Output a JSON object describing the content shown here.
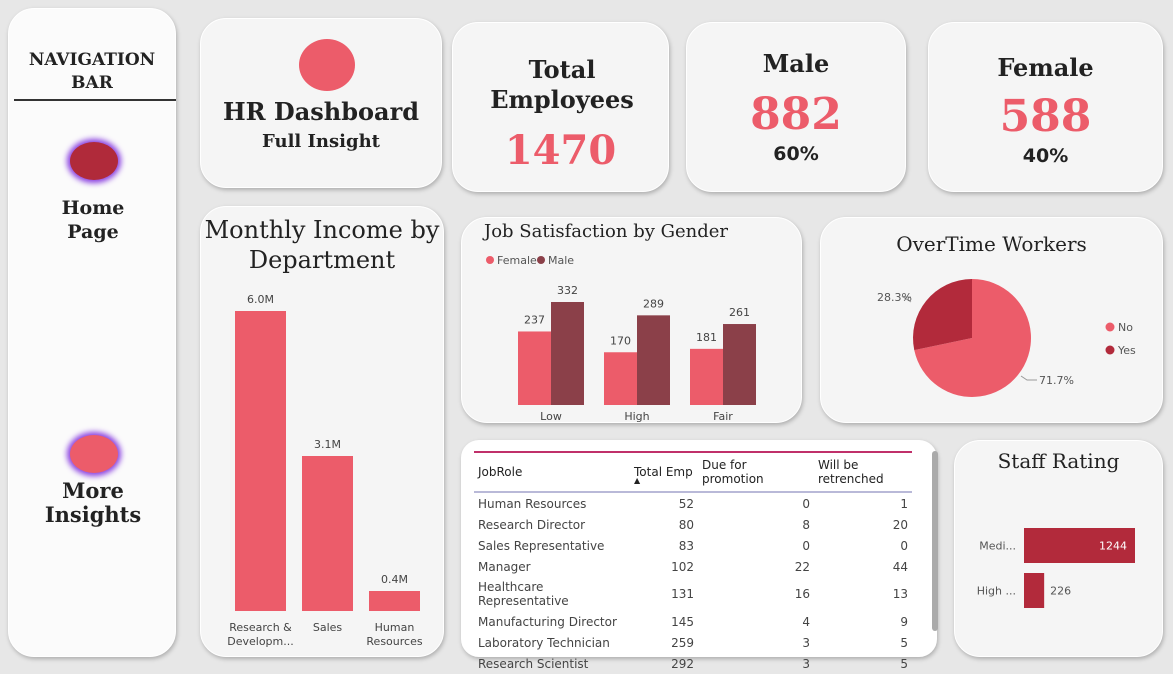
{
  "nav": {
    "title": "NAVIGATION BAR",
    "home_label": "Home Page",
    "more_label": "More Insights"
  },
  "header": {
    "title": "HR Dashboard",
    "subtitle": "Full Insight"
  },
  "kpis": {
    "total": {
      "label": "Total Employees",
      "value": "1470"
    },
    "male": {
      "label": "Male",
      "value": "882",
      "pct": "60%"
    },
    "female": {
      "label": "Female",
      "value": "588",
      "pct": "40%"
    }
  },
  "colors": {
    "accent": "#ec5c6a",
    "dark": "#8b4049",
    "deep": "#b22a3b"
  },
  "income_chart": {
    "title": "Monthly Income by Department",
    "chart_data": {
      "type": "bar",
      "categories": [
        "Research & Developm...",
        "Sales",
        "Human Resources"
      ],
      "values": [
        6.0,
        3.1,
        0.4
      ],
      "data_labels": [
        "6.0M",
        "3.1M",
        "0.4M"
      ],
      "ylim": [
        0,
        6.0
      ]
    }
  },
  "satisfaction_chart": {
    "title": "Job Satisfaction by Gender",
    "chart_data": {
      "type": "bar",
      "categories": [
        "Low",
        "High",
        "Fair"
      ],
      "series": [
        {
          "name": "Female",
          "values": [
            237,
            170,
            181
          ]
        },
        {
          "name": "Male",
          "values": [
            332,
            289,
            261
          ]
        }
      ],
      "legend": "top-left",
      "ylim": [
        0,
        332
      ]
    }
  },
  "overtime_chart": {
    "title": "OverTime Workers",
    "chart_data": {
      "type": "pie",
      "categories": [
        "No",
        "Yes"
      ],
      "values": [
        71.7,
        28.3
      ],
      "labels": [
        "71.7%",
        "28.3%"
      ],
      "legend": "right"
    }
  },
  "table": {
    "headers": [
      "JobRole",
      "Total Emp",
      "Due for promotion",
      "Will be retrenched"
    ],
    "rows": [
      [
        "Human Resources",
        "52",
        "0",
        "1"
      ],
      [
        "Research Director",
        "80",
        "8",
        "20"
      ],
      [
        "Sales Representative",
        "83",
        "0",
        "0"
      ],
      [
        "Manager",
        "102",
        "22",
        "44"
      ],
      [
        "Healthcare Representative",
        "131",
        "16",
        "13"
      ],
      [
        "Manufacturing Director",
        "145",
        "4",
        "9"
      ],
      [
        "Laboratory Technician",
        "259",
        "3",
        "5"
      ],
      [
        "Research Scientist",
        "292",
        "3",
        "5"
      ]
    ]
  },
  "rating_chart": {
    "title": "Staff Rating",
    "chart_data": {
      "type": "bar",
      "categories": [
        "Medi...",
        "High ..."
      ],
      "values": [
        1244,
        226
      ],
      "orientation": "horizontal"
    }
  }
}
